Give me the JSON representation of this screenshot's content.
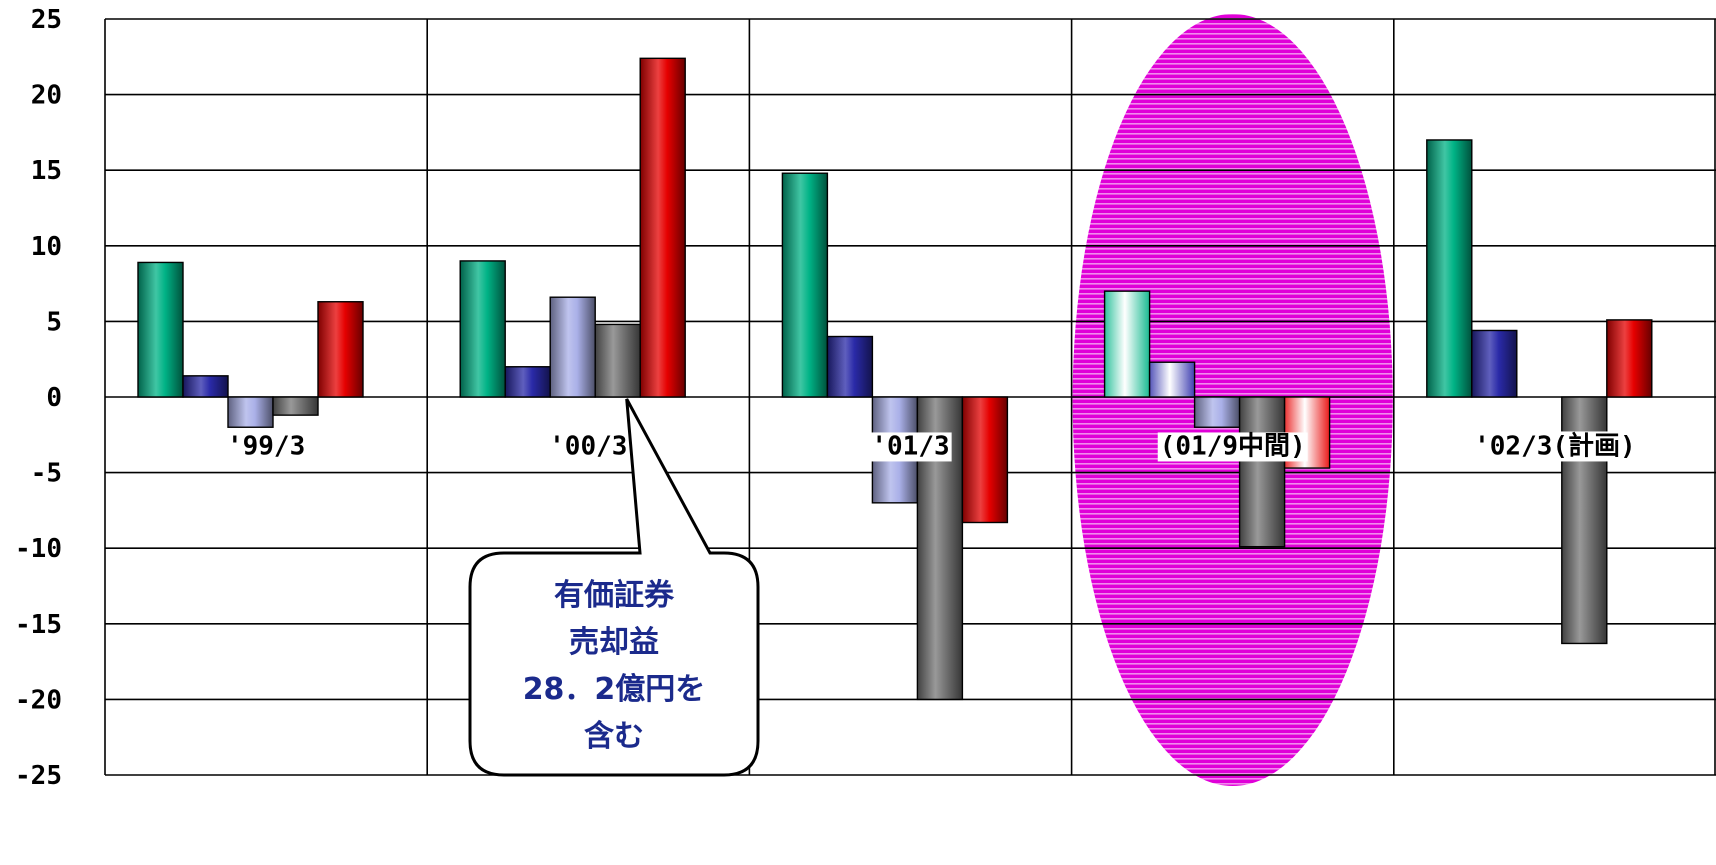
{
  "chart_data": {
    "type": "bar",
    "title": "",
    "xlabel": "",
    "ylabel": "",
    "ylim": [
      -25,
      25
    ],
    "yticks": [
      25,
      20,
      15,
      10,
      5,
      0,
      -5,
      -10,
      -15,
      -20,
      -25
    ],
    "yticklabels": [
      "25",
      "20",
      "15",
      "10",
      "5",
      "0",
      "-5",
      "-10",
      "-15",
      "-20",
      "-25"
    ],
    "grid": true,
    "legend": "none",
    "categories": [
      "'99/3",
      "'00/3",
      "'01/3",
      "(01/9中間)",
      "'02/3(計画)"
    ],
    "series": [
      {
        "color": "#00b386",
        "values": [
          8.9,
          9.0,
          14.8,
          7.0,
          17.0
        ]
      },
      {
        "color": "#2a2aa8",
        "values": [
          1.4,
          2.0,
          4.0,
          2.3,
          4.4
        ]
      },
      {
        "color": "#aab0e8",
        "values": [
          -2.0,
          6.6,
          -7.0,
          -2.0,
          null
        ]
      },
      {
        "color": "#777777",
        "values": [
          -1.2,
          4.8,
          -20.0,
          -9.9,
          -16.3
        ]
      },
      {
        "color": "#e60000",
        "values": [
          6.3,
          22.4,
          -8.3,
          -4.7,
          5.1
        ]
      }
    ],
    "highlight": {
      "category": "(01/9中間)",
      "color": "#e000d8"
    },
    "annotations": [
      {
        "category": "'00/3",
        "lines": [
          "有価証券",
          "売却益",
          "28．2億円を",
          "含む"
        ]
      }
    ]
  }
}
